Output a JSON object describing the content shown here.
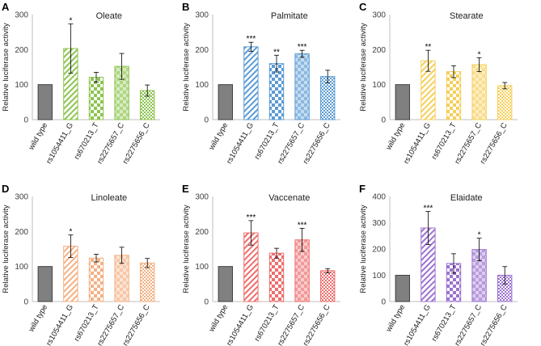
{
  "chart_data": [
    {
      "panel": "A",
      "title": "Oleate",
      "type": "bar",
      "ylabel": "Relative luciferase activity",
      "ylim": [
        0,
        300
      ],
      "yticks": [
        0,
        100,
        200,
        300
      ],
      "categories": [
        "wild type",
        "rs1054411_G",
        "rs670213_T",
        "rs2275657_C",
        "rs2275656_C"
      ],
      "values": [
        100,
        203,
        121,
        152,
        83
      ],
      "errors": [
        0,
        70,
        14,
        37,
        16
      ],
      "significance": [
        "",
        "*",
        "",
        "",
        ""
      ],
      "color": "#8dc44f"
    },
    {
      "panel": "B",
      "title": "Palmitate",
      "type": "bar",
      "ylabel": "Relative luciferase activity",
      "ylim": [
        0,
        300
      ],
      "yticks": [
        0,
        100,
        200,
        300
      ],
      "categories": [
        "wild type",
        "rs1054411_G",
        "rs670213_T",
        "rs2275657_C",
        "rs2275656_C"
      ],
      "values": [
        100,
        208,
        160,
        188,
        123
      ],
      "errors": [
        0,
        13,
        24,
        10,
        18
      ],
      "significance": [
        "",
        "***",
        "**",
        "***",
        ""
      ],
      "color": "#5b9bd5"
    },
    {
      "panel": "C",
      "title": "Stearate",
      "type": "bar",
      "ylabel": "Relative luciferase activity",
      "ylim": [
        0,
        300
      ],
      "yticks": [
        0,
        100,
        200,
        300
      ],
      "categories": [
        "wild type",
        "rs1054411_G",
        "rs670213_T",
        "rs2275657_C",
        "rs2275656_C"
      ],
      "values": [
        100,
        168,
        137,
        157,
        97
      ],
      "errors": [
        0,
        30,
        17,
        20,
        9
      ],
      "significance": [
        "",
        "**",
        "",
        "*",
        ""
      ],
      "color": "#f5cf5a"
    },
    {
      "panel": "D",
      "title": "Linoleate",
      "type": "bar",
      "ylabel": "Relative luciferase activity",
      "ylim": [
        0,
        300
      ],
      "yticks": [
        0,
        100,
        200,
        300
      ],
      "categories": [
        "wild type",
        "rs1054411_G",
        "rs670213_T",
        "rs2275657_C",
        "rs2275656_C"
      ],
      "values": [
        100,
        158,
        124,
        132,
        110
      ],
      "errors": [
        0,
        32,
        11,
        23,
        13
      ],
      "significance": [
        "",
        "*",
        "",
        "",
        ""
      ],
      "color": "#f4b183"
    },
    {
      "panel": "E",
      "title": "Vaccenate",
      "type": "bar",
      "ylabel": "Relative luciferase activity",
      "ylim": [
        0,
        300
      ],
      "yticks": [
        0,
        100,
        200,
        300
      ],
      "categories": [
        "wild type",
        "rs1054411_G",
        "rs670213_T",
        "rs2275657_C",
        "rs2275656_C"
      ],
      "values": [
        100,
        196,
        138,
        176,
        88
      ],
      "errors": [
        0,
        35,
        14,
        33,
        6
      ],
      "significance": [
        "",
        "***",
        "",
        "***",
        ""
      ],
      "color": "#ee6d6d"
    },
    {
      "panel": "F",
      "title": "Elaidate",
      "type": "bar",
      "ylabel": "Relative luciferase activity",
      "ylim": [
        0,
        400
      ],
      "yticks": [
        0,
        100,
        200,
        300,
        400
      ],
      "categories": [
        "wild type",
        "rs1054411_G",
        "rs670213_T",
        "rs2275657_C",
        "rs2275656_C"
      ],
      "values": [
        100,
        280,
        145,
        198,
        100
      ],
      "errors": [
        0,
        63,
        37,
        43,
        33
      ],
      "significance": [
        "",
        "***",
        "",
        "*",
        ""
      ],
      "color": "#9b72cf"
    }
  ],
  "colors": {
    "wild_type": "#808080",
    "axis": "#bfbfbf",
    "error_bar": "#000000"
  }
}
